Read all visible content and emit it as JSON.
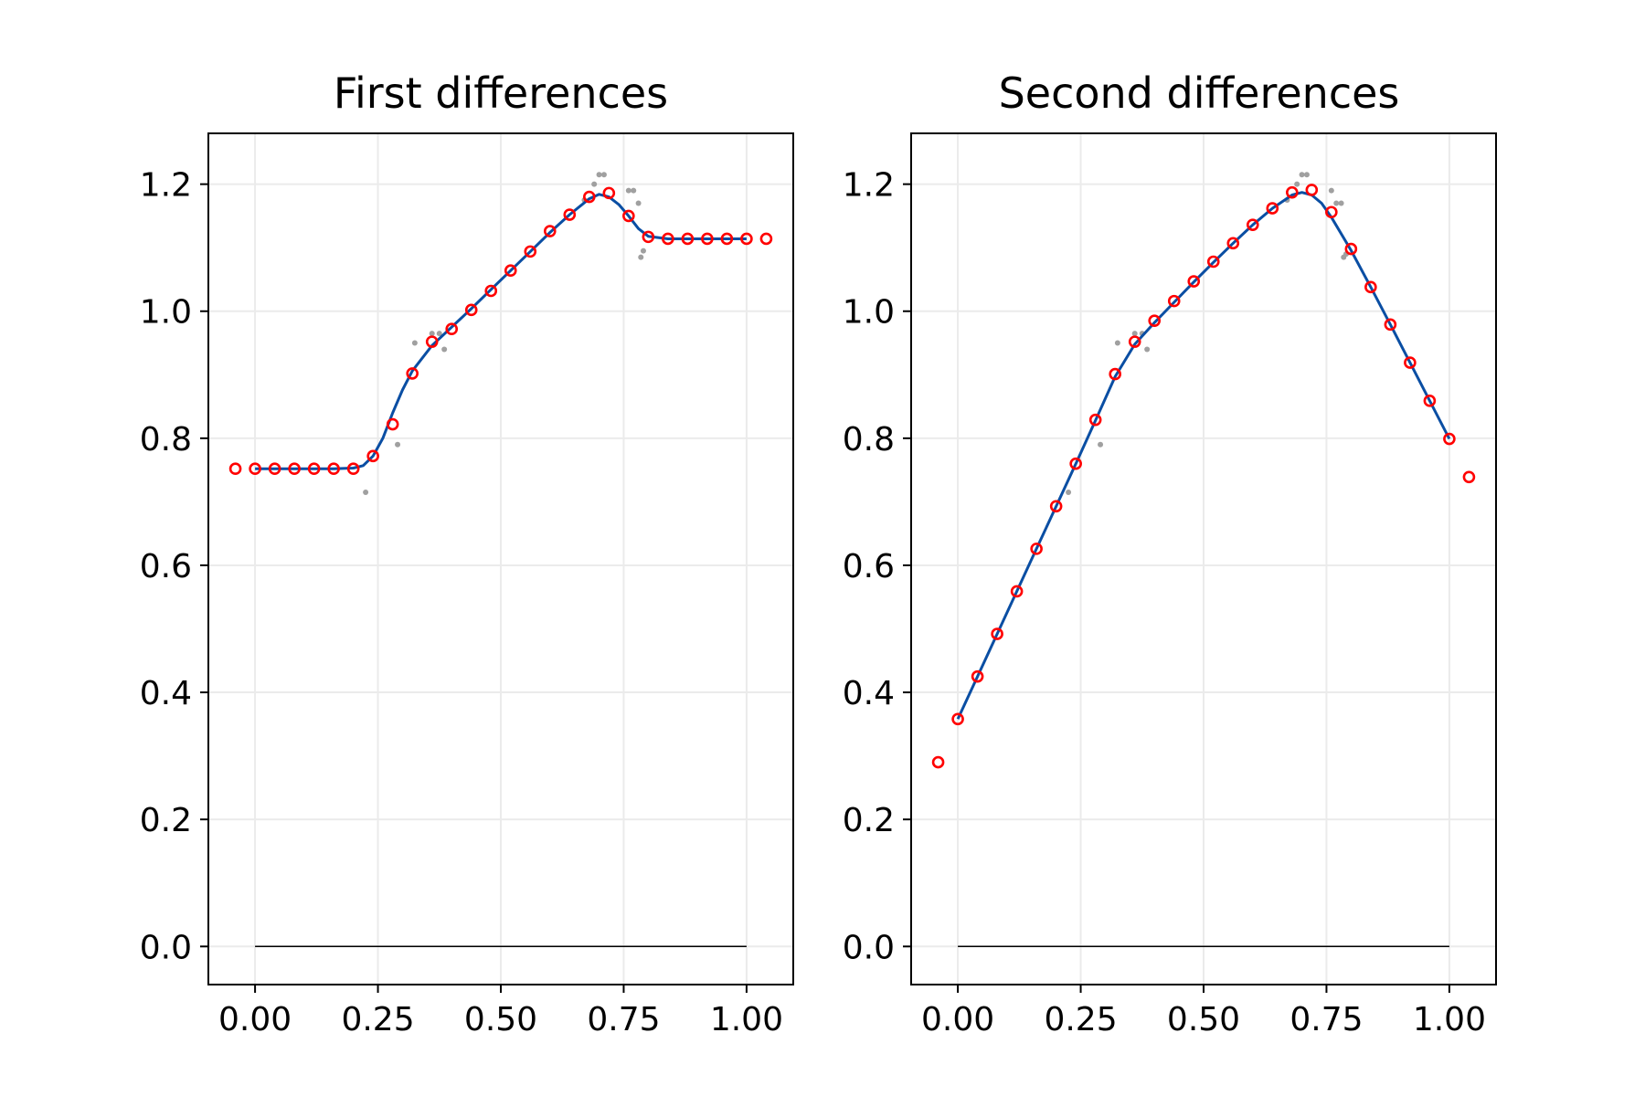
{
  "chart_data": [
    {
      "type": "line",
      "title": "First differences",
      "xlabel": "",
      "ylabel": "",
      "xlim": [
        -0.095,
        1.095
      ],
      "ylim": [
        -0.06,
        1.28
      ],
      "xticks": [
        0.0,
        0.25,
        0.5,
        0.75,
        1.0
      ],
      "xtick_labels": [
        "0.00",
        "0.25",
        "0.50",
        "0.75",
        "1.00"
      ],
      "yticks": [
        0.0,
        0.2,
        0.4,
        0.6,
        0.8,
        1.0,
        1.2
      ],
      "ytick_labels": [
        "0.0",
        "0.2",
        "0.4",
        "0.6",
        "0.8",
        "1.0",
        "1.2"
      ],
      "grid": true,
      "colors": {
        "curve": "#0a4ea3",
        "circles": "#ff0000",
        "noisy": "#a0a0a0",
        "baseline": "#000000"
      },
      "series": [
        {
          "kind": "scatter-noisy",
          "x": [
            0.225,
            0.29,
            0.325,
            0.36,
            0.375,
            0.385,
            0.67,
            0.69,
            0.7,
            0.71,
            0.76,
            0.77,
            0.78,
            0.785,
            0.79
          ],
          "y": [
            0.715,
            0.79,
            0.95,
            0.965,
            0.965,
            0.94,
            1.175,
            1.2,
            1.215,
            1.215,
            1.19,
            1.19,
            1.17,
            1.085,
            1.095
          ]
        },
        {
          "kind": "line-smooth",
          "x": [
            0.0,
            0.04,
            0.08,
            0.12,
            0.16,
            0.2,
            0.22,
            0.24,
            0.26,
            0.28,
            0.3,
            0.32,
            0.36,
            0.4,
            0.44,
            0.48,
            0.52,
            0.56,
            0.6,
            0.64,
            0.68,
            0.7,
            0.72,
            0.74,
            0.76,
            0.78,
            0.8,
            0.84,
            0.88,
            0.92,
            0.96,
            1.0
          ],
          "y": [
            0.752,
            0.752,
            0.752,
            0.752,
            0.752,
            0.753,
            0.757,
            0.772,
            0.8,
            0.84,
            0.876,
            0.906,
            0.946,
            0.975,
            1.004,
            1.034,
            1.064,
            1.094,
            1.124,
            1.152,
            1.177,
            1.184,
            1.18,
            1.168,
            1.15,
            1.13,
            1.118,
            1.114,
            1.114,
            1.114,
            1.114,
            1.114
          ]
        },
        {
          "kind": "scatter-circles",
          "x": [
            -0.04,
            0.0,
            0.04,
            0.08,
            0.12,
            0.16,
            0.2,
            0.24,
            0.28,
            0.32,
            0.36,
            0.4,
            0.44,
            0.48,
            0.52,
            0.56,
            0.6,
            0.64,
            0.68,
            0.72,
            0.76,
            0.8,
            0.84,
            0.88,
            0.92,
            0.96,
            1.0,
            1.04
          ],
          "y": [
            0.752,
            0.752,
            0.752,
            0.752,
            0.752,
            0.752,
            0.752,
            0.772,
            0.822,
            0.902,
            0.952,
            0.972,
            1.002,
            1.032,
            1.064,
            1.094,
            1.126,
            1.152,
            1.18,
            1.186,
            1.15,
            1.117,
            1.114,
            1.114,
            1.114,
            1.114,
            1.114,
            1.114
          ]
        },
        {
          "kind": "baseline",
          "x": [
            0.0,
            1.0
          ],
          "y": [
            0.0,
            0.0
          ]
        }
      ]
    },
    {
      "type": "line",
      "title": "Second differences",
      "xlabel": "",
      "ylabel": "",
      "xlim": [
        -0.095,
        1.095
      ],
      "ylim": [
        -0.06,
        1.28
      ],
      "xticks": [
        0.0,
        0.25,
        0.5,
        0.75,
        1.0
      ],
      "xtick_labels": [
        "0.00",
        "0.25",
        "0.50",
        "0.75",
        "1.00"
      ],
      "yticks": [
        0.0,
        0.2,
        0.4,
        0.6,
        0.8,
        1.0,
        1.2
      ],
      "ytick_labels": [
        "0.0",
        "0.2",
        "0.4",
        "0.6",
        "0.8",
        "1.0",
        "1.2"
      ],
      "grid": true,
      "colors": {
        "curve": "#0a4ea3",
        "circles": "#ff0000",
        "noisy": "#a0a0a0",
        "baseline": "#000000"
      },
      "series": [
        {
          "kind": "scatter-noisy",
          "x": [
            0.225,
            0.29,
            0.325,
            0.36,
            0.375,
            0.385,
            0.67,
            0.69,
            0.7,
            0.71,
            0.76,
            0.77,
            0.78,
            0.785,
            0.79
          ],
          "y": [
            0.715,
            0.79,
            0.95,
            0.965,
            0.965,
            0.94,
            1.175,
            1.2,
            1.215,
            1.215,
            1.19,
            1.17,
            1.17,
            1.085,
            1.09
          ]
        },
        {
          "kind": "line-smooth",
          "x": [
            0.0,
            0.04,
            0.08,
            0.12,
            0.16,
            0.2,
            0.24,
            0.28,
            0.32,
            0.36,
            0.4,
            0.44,
            0.48,
            0.52,
            0.56,
            0.6,
            0.64,
            0.68,
            0.7,
            0.72,
            0.74,
            0.76,
            0.8,
            0.84,
            0.88,
            0.92,
            0.96,
            1.0
          ],
          "y": [
            0.358,
            0.425,
            0.492,
            0.559,
            0.626,
            0.693,
            0.76,
            0.828,
            0.897,
            0.948,
            0.982,
            1.014,
            1.046,
            1.077,
            1.107,
            1.136,
            1.162,
            1.183,
            1.187,
            1.183,
            1.17,
            1.148,
            1.096,
            1.038,
            0.979,
            0.919,
            0.859,
            0.799
          ]
        },
        {
          "kind": "scatter-circles",
          "x": [
            -0.04,
            0.0,
            0.04,
            0.08,
            0.12,
            0.16,
            0.2,
            0.24,
            0.28,
            0.32,
            0.36,
            0.4,
            0.44,
            0.48,
            0.52,
            0.56,
            0.6,
            0.64,
            0.68,
            0.72,
            0.76,
            0.8,
            0.84,
            0.88,
            0.92,
            0.96,
            1.0,
            1.04
          ],
          "y": [
            0.29,
            0.358,
            0.425,
            0.492,
            0.559,
            0.626,
            0.693,
            0.76,
            0.829,
            0.901,
            0.952,
            0.985,
            1.016,
            1.047,
            1.078,
            1.107,
            1.136,
            1.162,
            1.187,
            1.191,
            1.156,
            1.098,
            1.038,
            0.979,
            0.919,
            0.859,
            0.799,
            0.739
          ]
        },
        {
          "kind": "baseline",
          "x": [
            0.0,
            1.0
          ],
          "y": [
            0.0,
            0.0
          ]
        }
      ]
    }
  ]
}
